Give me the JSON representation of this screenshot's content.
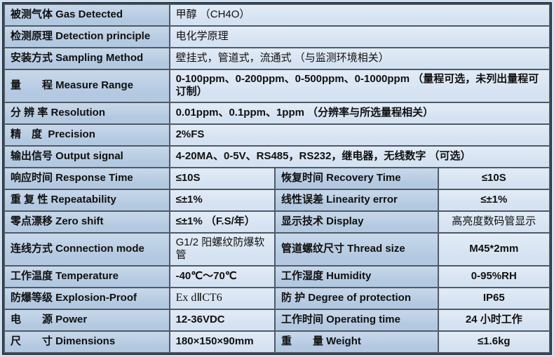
{
  "document": {
    "kind": "product-specification-table",
    "subject": "甲醇 (CH4O) 气体检测仪 technical specifications"
  },
  "colors": {
    "page_bg": "#cde0f2",
    "outer_border": "#2a323b",
    "border": "#4e5a66",
    "label_bg": "#b3c9e1",
    "label_bg_light": "#c8d8ea",
    "value_bg": "#d5e2f1",
    "value_bg_light": "#e2ecf7",
    "text": "#101010"
  },
  "table": {
    "rows": [
      {
        "cells": [
          {
            "role": "label",
            "text": "被测气体 Gas Detected"
          },
          {
            "role": "value",
            "text": "甲醇 （CH4O）",
            "span": 3,
            "plain": true
          }
        ]
      },
      {
        "cells": [
          {
            "role": "label",
            "text": "检测原理 Detection principle"
          },
          {
            "role": "value",
            "text": "电化学原理",
            "span": 3,
            "plain": true
          }
        ]
      },
      {
        "cells": [
          {
            "role": "label",
            "text": "安装方式 Sampling Method"
          },
          {
            "role": "value",
            "text": "壁挂式，管道式，流通式 （与监测环境相关）",
            "span": 3,
            "plain": true
          }
        ]
      },
      {
        "cells": [
          {
            "role": "label",
            "text": "量　　程 Measure Range"
          },
          {
            "role": "value",
            "text": "0-100ppm、0-200ppm、0-500ppm、0-1000ppm （量程可选，未列出量程可订制）",
            "span": 3
          }
        ]
      },
      {
        "cells": [
          {
            "role": "label",
            "text": "分 辨 率 Resolution"
          },
          {
            "role": "value",
            "text": "0.01ppm、0.1ppm、1ppm （分辨率与所选量程相关）",
            "span": 3
          }
        ]
      },
      {
        "cells": [
          {
            "role": "label",
            "text": "精　度  Precision"
          },
          {
            "role": "value",
            "text": "2%FS",
            "span": 3
          }
        ]
      },
      {
        "cells": [
          {
            "role": "label",
            "text": "输出信号 Output signal"
          },
          {
            "role": "value",
            "text": "4-20MA、0-5V、RS485，RS232，继电器，无线数字 （可选）",
            "span": 3
          }
        ]
      },
      {
        "cells": [
          {
            "role": "label",
            "text": "响应时间 Response Time"
          },
          {
            "role": "value",
            "text": "≤10S"
          },
          {
            "role": "label",
            "text": "恢复时间 Recovery Time"
          },
          {
            "role": "value",
            "text": "≤10S",
            "center": true
          }
        ]
      },
      {
        "cells": [
          {
            "role": "label",
            "text": "重 复 性 Repeatability"
          },
          {
            "role": "value",
            "text": "≤±1%"
          },
          {
            "role": "label",
            "text": "线性误差 Linearity error"
          },
          {
            "role": "value",
            "text": "≤±1%",
            "center": true
          }
        ]
      },
      {
        "cells": [
          {
            "role": "label",
            "text": "零点漂移 Zero shift"
          },
          {
            "role": "value",
            "text": "≤±1% （F.S/年）"
          },
          {
            "role": "label",
            "text": "显示技术 Display"
          },
          {
            "role": "value",
            "text": "高亮度数码管显示",
            "center": true,
            "plain": true
          }
        ]
      },
      {
        "cells": [
          {
            "role": "label",
            "text": "连线方式 Connection mode"
          },
          {
            "role": "value",
            "text": "G1/2 阳螺纹防爆软管",
            "plain": true
          },
          {
            "role": "label",
            "text": "管道螺纹尺寸 Thread size"
          },
          {
            "role": "value",
            "text": "M45*2mm",
            "center": true
          }
        ]
      },
      {
        "cells": [
          {
            "role": "label",
            "text": "工作温度 Temperature"
          },
          {
            "role": "value",
            "text": "-40℃～70℃"
          },
          {
            "role": "label",
            "text": "工作湿度 Humidity"
          },
          {
            "role": "value",
            "text": "0-95%RH",
            "center": true
          }
        ]
      },
      {
        "cells": [
          {
            "role": "label",
            "text": "防爆等级 Explosion-Proof"
          },
          {
            "role": "value",
            "text": "Ex dⅡCT6",
            "plain": true,
            "serif": true
          },
          {
            "role": "label",
            "text": "防 护 Degree of protection"
          },
          {
            "role": "value",
            "text": "IP65",
            "center": true
          }
        ]
      },
      {
        "cells": [
          {
            "role": "label",
            "text": "电　　源 Power"
          },
          {
            "role": "value",
            "text": "12-36VDC"
          },
          {
            "role": "label",
            "text": "工作时间 Operating time"
          },
          {
            "role": "value",
            "text": "24 小时工作",
            "center": true
          }
        ]
      },
      {
        "cells": [
          {
            "role": "label",
            "text": "尺　　寸 Dimensions"
          },
          {
            "role": "value",
            "text": "180×150×90mm"
          },
          {
            "role": "label",
            "text": "重　　量 Weight"
          },
          {
            "role": "value",
            "text": "≤1.6kg",
            "center": true
          }
        ]
      }
    ]
  }
}
